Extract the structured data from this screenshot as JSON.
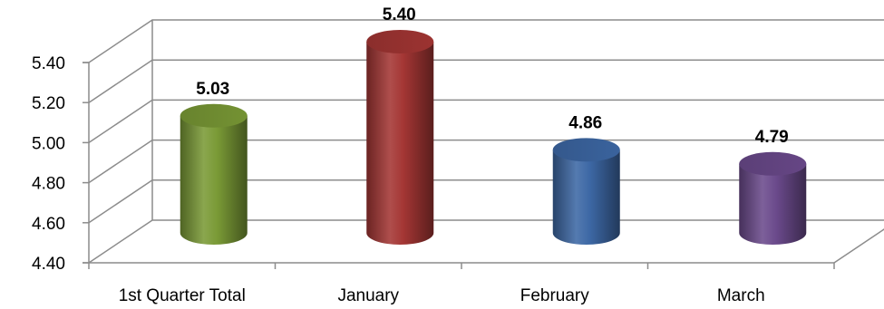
{
  "chart_data": {
    "type": "bar",
    "title": "",
    "xlabel": "",
    "ylabel": "",
    "categories": [
      "1st Quarter Total",
      "January",
      "February",
      "March"
    ],
    "values": [
      5.03,
      5.4,
      4.86,
      4.79
    ],
    "data_labels": [
      "5.03",
      "5.40",
      "4.86",
      "4.79"
    ],
    "ylim": [
      4.4,
      5.4
    ],
    "yticks": [
      "4.40",
      "4.60",
      "4.80",
      "5.00",
      "5.20",
      "5.40"
    ],
    "ytick_values": [
      4.4,
      4.6,
      4.8,
      5.0,
      5.2,
      5.4
    ],
    "style": "3d-cylinder",
    "grid": true,
    "legend": "none",
    "colors": [
      "#7a9a36",
      "#a43634",
      "#3d68a5",
      "#6b4a8c"
    ]
  }
}
